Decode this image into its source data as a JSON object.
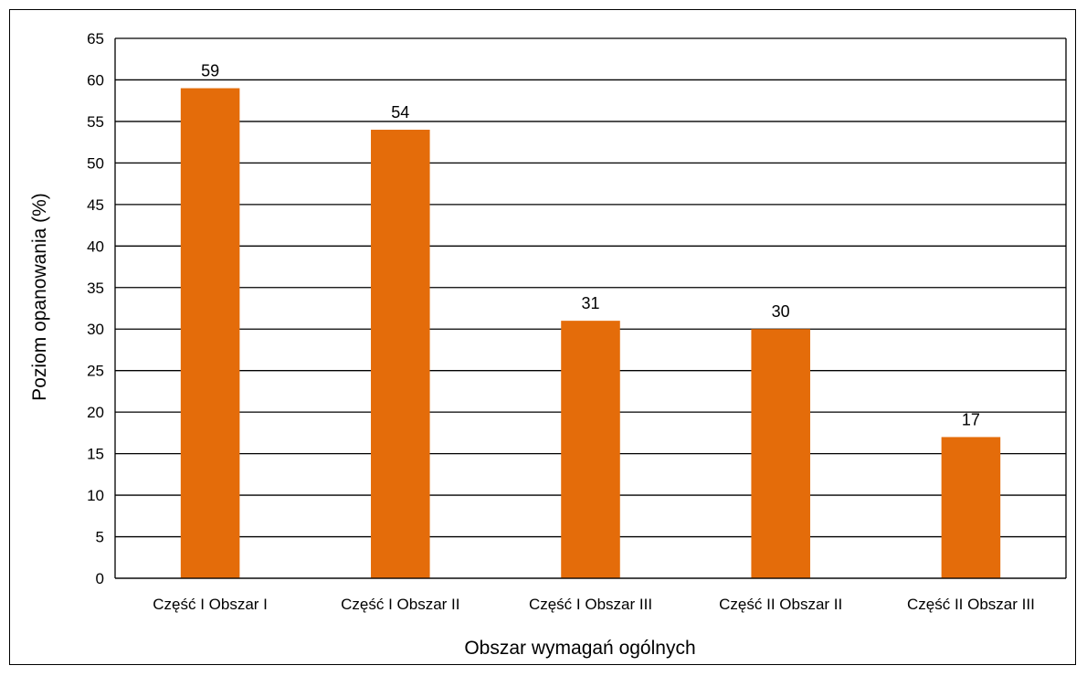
{
  "chart_data": {
    "type": "bar",
    "title": "",
    "categories": [
      "Część I Obszar I",
      "Część I Obszar II",
      "Część I Obszar III",
      "Część II Obszar II",
      "Część II Obszar III"
    ],
    "values": [
      59,
      54,
      31,
      30,
      17
    ],
    "data_labels": [
      "59",
      "54",
      "31",
      "30",
      "17"
    ],
    "xlabel": "Obszar wymagań ogólnych",
    "ylabel": "Poziom opanowania (%)",
    "ylim": [
      0,
      65
    ],
    "yticks": [
      0,
      5,
      10,
      15,
      20,
      25,
      30,
      35,
      40,
      45,
      50,
      55,
      60,
      65
    ],
    "grid": true,
    "legend": "none",
    "bar_color": "#E46C0A"
  }
}
